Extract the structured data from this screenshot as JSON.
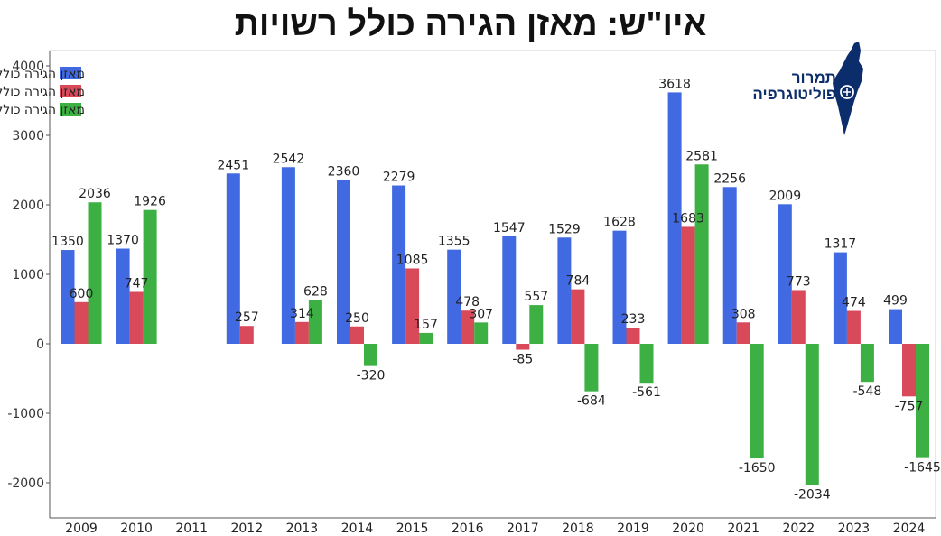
{
  "header": {
    "title": "איו\"ש: מאזן הגירה כולל רשויות"
  },
  "logo": {
    "line1": "תמרור",
    "line2": "פוליטוגרפיה"
  },
  "colors": {
    "regional": "#4169e1",
    "local": "#d8495a",
    "cities": "#3cb043"
  },
  "chart_data": {
    "type": "bar",
    "title": "איו\"ש: מאזן הגירה כולל רשויות",
    "categories": [
      "2009",
      "2010",
      "2011",
      "2012",
      "2013",
      "2014",
      "2015",
      "2016",
      "2017",
      "2018",
      "2019",
      "2020",
      "2021",
      "2022",
      "2023",
      "2024"
    ],
    "series": [
      {
        "name": "מאזן הגירה כולל מועצות אזוריות",
        "color": "#4169e1",
        "values": [
          1350,
          1370,
          null,
          2451,
          2542,
          2360,
          2279,
          1355,
          1547,
          1529,
          1628,
          3618,
          2256,
          2009,
          1317,
          499
        ]
      },
      {
        "name": "מאזן הגירה כולל מועצות מקומיות",
        "color": "#d8495a",
        "values": [
          600,
          747,
          null,
          257,
          314,
          250,
          1085,
          478,
          -85,
          784,
          233,
          1683,
          308,
          773,
          474,
          -757
        ]
      },
      {
        "name": "מאזן הגירה כולל ערים",
        "color": "#3cb043",
        "values": [
          2036,
          1926,
          null,
          null,
          628,
          -320,
          157,
          307,
          557,
          -684,
          -561,
          2581,
          -1650,
          -2034,
          -548,
          -1645
        ]
      }
    ],
    "y_ticks": [
      4000,
      3000,
      2000,
      1000,
      0,
      -1000,
      -2000
    ],
    "ylim": [
      -2500,
      4000
    ],
    "legend_position": "top-left",
    "grid": false,
    "xlabel": "",
    "ylabel": ""
  }
}
